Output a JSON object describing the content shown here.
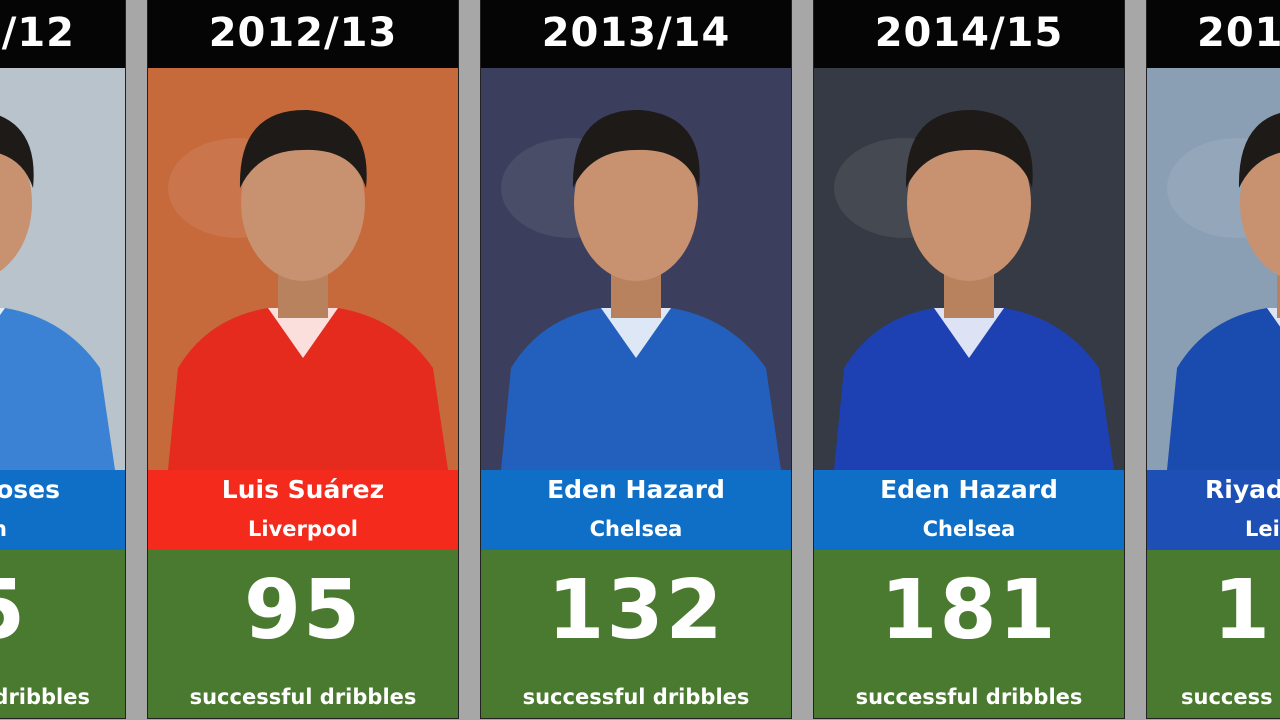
{
  "cards": [
    {
      "season": "/12",
      "name": "oses",
      "club": "n",
      "value": 5,
      "unit": "dribbles"
    },
    {
      "season": "2012/13",
      "name": "Luis Suárez",
      "club": "Liverpool",
      "value": 95,
      "unit": "successful dribbles"
    },
    {
      "season": "2013/14",
      "name": "Eden Hazard",
      "club": "Chelsea",
      "value": 132,
      "unit": "successful dribbles"
    },
    {
      "season": "2014/15",
      "name": "Eden Hazard",
      "club": "Chelsea",
      "value": 181,
      "unit": "successful dribbles"
    },
    {
      "season": "201",
      "name": "Riyad",
      "club": "Lei",
      "value": 1,
      "unit": "success"
    }
  ]
}
